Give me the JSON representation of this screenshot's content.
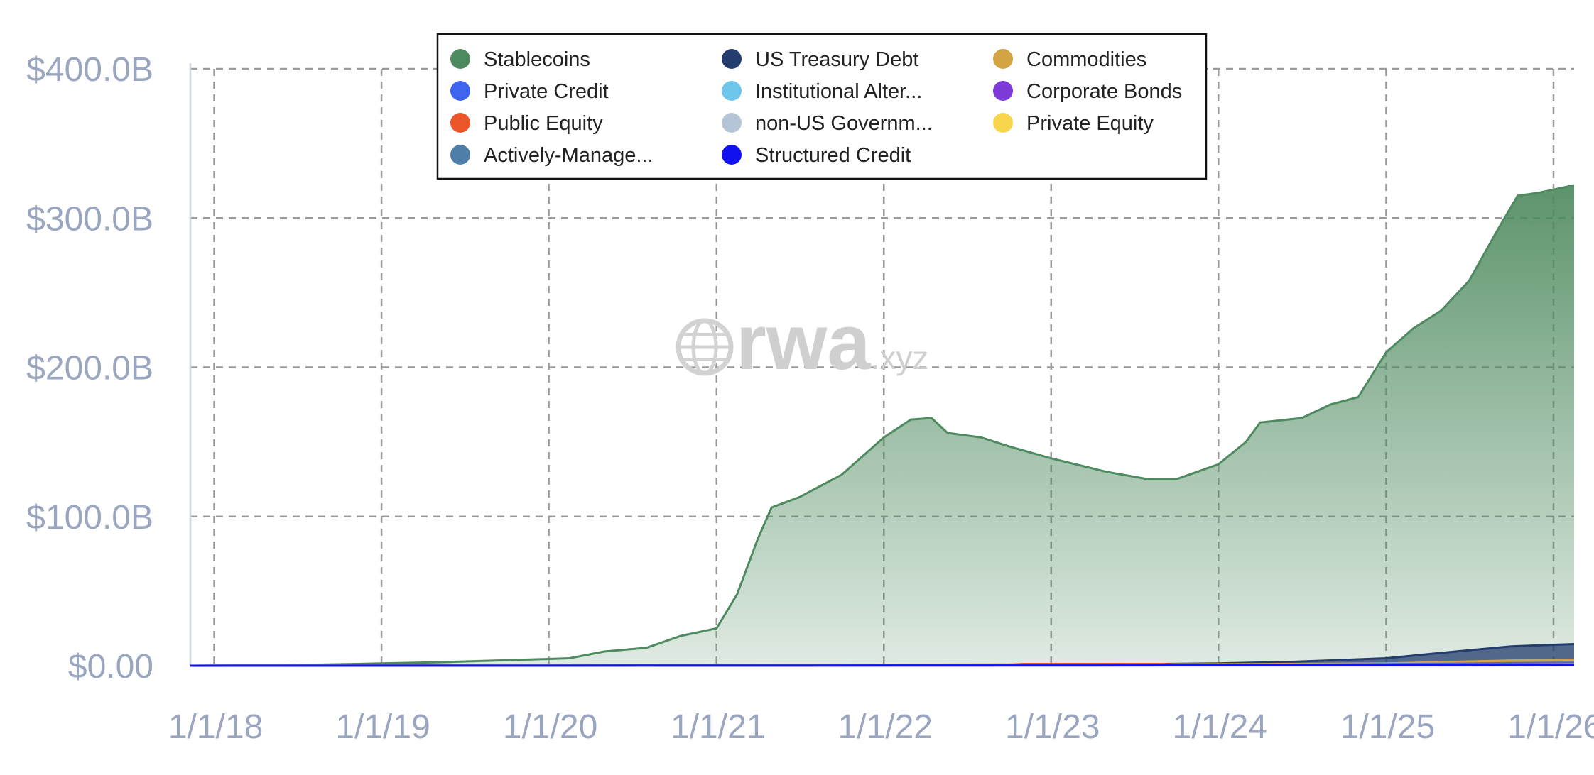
{
  "chart_data": {
    "type": "area",
    "title": "",
    "xlabel": "",
    "ylabel": "",
    "y_unit": "billion USD",
    "ylim": [
      0,
      400
    ],
    "y_ticks": [
      0,
      100,
      200,
      300,
      400
    ],
    "y_tick_labels": [
      "$0.00",
      "$100.0B",
      "$200.0B",
      "$300.0B",
      "$400.0B"
    ],
    "x_range": [
      "2017-11-10",
      "2026-02-15"
    ],
    "x_ticks": [
      "2018-01-01",
      "2019-01-01",
      "2020-01-01",
      "2021-01-01",
      "2022-01-01",
      "2023-01-01",
      "2024-01-01",
      "2025-01-01",
      "2026-01-01"
    ],
    "x_tick_labels": [
      "1/1/18",
      "1/1/19",
      "1/1/20",
      "1/1/21",
      "1/1/22",
      "1/1/23",
      "1/1/24",
      "1/1/25",
      "1/1/26"
    ],
    "grid": true,
    "legend_position": "top",
    "watermark": "rwa.xyz",
    "legend": [
      {
        "label": "Stablecoins",
        "color": "#4e8a5f"
      },
      {
        "label": "US Treasury Debt",
        "color": "#233e6e"
      },
      {
        "label": "Commodities",
        "color": "#d4a444"
      },
      {
        "label": "Private Credit",
        "color": "#3e64f0"
      },
      {
        "label": "Institutional Alter...",
        "color": "#6ec6ea"
      },
      {
        "label": "Corporate Bonds",
        "color": "#7c3ad8"
      },
      {
        "label": "Public Equity",
        "color": "#eb5529"
      },
      {
        "label": "non-US Governm...",
        "color": "#b6c4d8"
      },
      {
        "label": "Private Equity",
        "color": "#f7d64e"
      },
      {
        "label": "Actively-Manage...",
        "color": "#4e7fa8"
      },
      {
        "label": "Structured Credit",
        "color": "#1010f0"
      }
    ],
    "series": [
      {
        "name": "Stablecoins",
        "color": "#4e8a5f",
        "points": [
          [
            "2017-11-10",
            0
          ],
          [
            "2018-06-01",
            0.3
          ],
          [
            "2019-01-01",
            1.5
          ],
          [
            "2019-06-01",
            2.5
          ],
          [
            "2020-01-01",
            4.5
          ],
          [
            "2020-02-15",
            5
          ],
          [
            "2020-05-01",
            9.5
          ],
          [
            "2020-08-01",
            12
          ],
          [
            "2020-10-15",
            20
          ],
          [
            "2021-01-01",
            25
          ],
          [
            "2021-02-15",
            48
          ],
          [
            "2021-04-01",
            85
          ],
          [
            "2021-05-01",
            106
          ],
          [
            "2021-07-01",
            113
          ],
          [
            "2021-10-01",
            128
          ],
          [
            "2022-01-01",
            153
          ],
          [
            "2022-03-01",
            165
          ],
          [
            "2022-04-15",
            166
          ],
          [
            "2022-05-20",
            156
          ],
          [
            "2022-08-01",
            153
          ],
          [
            "2022-10-01",
            147
          ],
          [
            "2023-01-01",
            139
          ],
          [
            "2023-05-01",
            130
          ],
          [
            "2023-08-01",
            125
          ],
          [
            "2023-10-01",
            125
          ],
          [
            "2024-01-01",
            135
          ],
          [
            "2024-03-01",
            150
          ],
          [
            "2024-04-01",
            163
          ],
          [
            "2024-07-01",
            166
          ],
          [
            "2024-09-01",
            175
          ],
          [
            "2024-11-01",
            180
          ],
          [
            "2025-01-01",
            210
          ],
          [
            "2025-03-01",
            226
          ],
          [
            "2025-05-01",
            238
          ],
          [
            "2025-07-01",
            258
          ],
          [
            "2025-09-01",
            292
          ],
          [
            "2025-10-15",
            315
          ],
          [
            "2025-12-01",
            317
          ],
          [
            "2026-02-15",
            322
          ]
        ]
      },
      {
        "name": "US Treasury Debt",
        "color": "#233e6e",
        "points": [
          [
            "2017-11-10",
            0
          ],
          [
            "2023-01-01",
            0.5
          ],
          [
            "2024-01-01",
            1.5
          ],
          [
            "2024-06-01",
            2.5
          ],
          [
            "2025-01-01",
            5
          ],
          [
            "2025-06-01",
            9.5
          ],
          [
            "2025-10-01",
            13
          ],
          [
            "2026-02-15",
            14.5
          ]
        ]
      },
      {
        "name": "Commodities",
        "color": "#d4a444",
        "points": [
          [
            "2017-11-10",
            0
          ],
          [
            "2022-01-01",
            0.7
          ],
          [
            "2024-01-01",
            1
          ],
          [
            "2025-01-01",
            1.5
          ],
          [
            "2025-10-01",
            3.5
          ],
          [
            "2026-02-15",
            4
          ]
        ]
      },
      {
        "name": "Institutional Alter...",
        "color": "#6ec6ea",
        "points": [
          [
            "2017-11-10",
            0
          ],
          [
            "2019-01-01",
            0.3
          ],
          [
            "2024-01-01",
            0.5
          ],
          [
            "2025-01-01",
            1
          ],
          [
            "2026-02-15",
            1.5
          ]
        ]
      },
      {
        "name": "Private Credit",
        "color": "#3e64f0",
        "points": [
          [
            "2017-11-10",
            0
          ],
          [
            "2024-01-01",
            0.5
          ],
          [
            "2025-01-01",
            1
          ],
          [
            "2026-02-15",
            2
          ]
        ]
      },
      {
        "name": "Public Equity",
        "color": "#eb5529",
        "points": [
          [
            "2017-11-10",
            0
          ],
          [
            "2022-09-01",
            0.2
          ],
          [
            "2022-11-01",
            1.2
          ],
          [
            "2023-09-01",
            1.2
          ],
          [
            "2023-10-15",
            0.3
          ],
          [
            "2026-02-15",
            0.5
          ]
        ]
      },
      {
        "name": "Corporate Bonds",
        "color": "#7c3ad8",
        "points": [
          [
            "2017-11-10",
            0
          ],
          [
            "2025-01-01",
            0.5
          ],
          [
            "2026-02-15",
            1
          ]
        ]
      },
      {
        "name": "non-US Governm...",
        "color": "#b6c4d8",
        "points": [
          [
            "2017-11-10",
            0
          ],
          [
            "2025-01-01",
            0.5
          ],
          [
            "2026-02-15",
            0.8
          ]
        ]
      },
      {
        "name": "Private Equity",
        "color": "#f7d64e",
        "points": [
          [
            "2017-11-10",
            0
          ],
          [
            "2025-06-01",
            0.5
          ],
          [
            "2026-02-15",
            0.8
          ]
        ]
      },
      {
        "name": "Actively-Manage...",
        "color": "#4e7fa8",
        "points": [
          [
            "2017-11-10",
            0
          ],
          [
            "2025-06-01",
            0.3
          ],
          [
            "2026-02-15",
            0.7
          ]
        ]
      },
      {
        "name": "Structured Credit",
        "color": "#1010f0",
        "points": [
          [
            "2017-11-10",
            0
          ],
          [
            "2025-06-01",
            0.3
          ],
          [
            "2026-02-15",
            0.6
          ]
        ]
      }
    ]
  }
}
